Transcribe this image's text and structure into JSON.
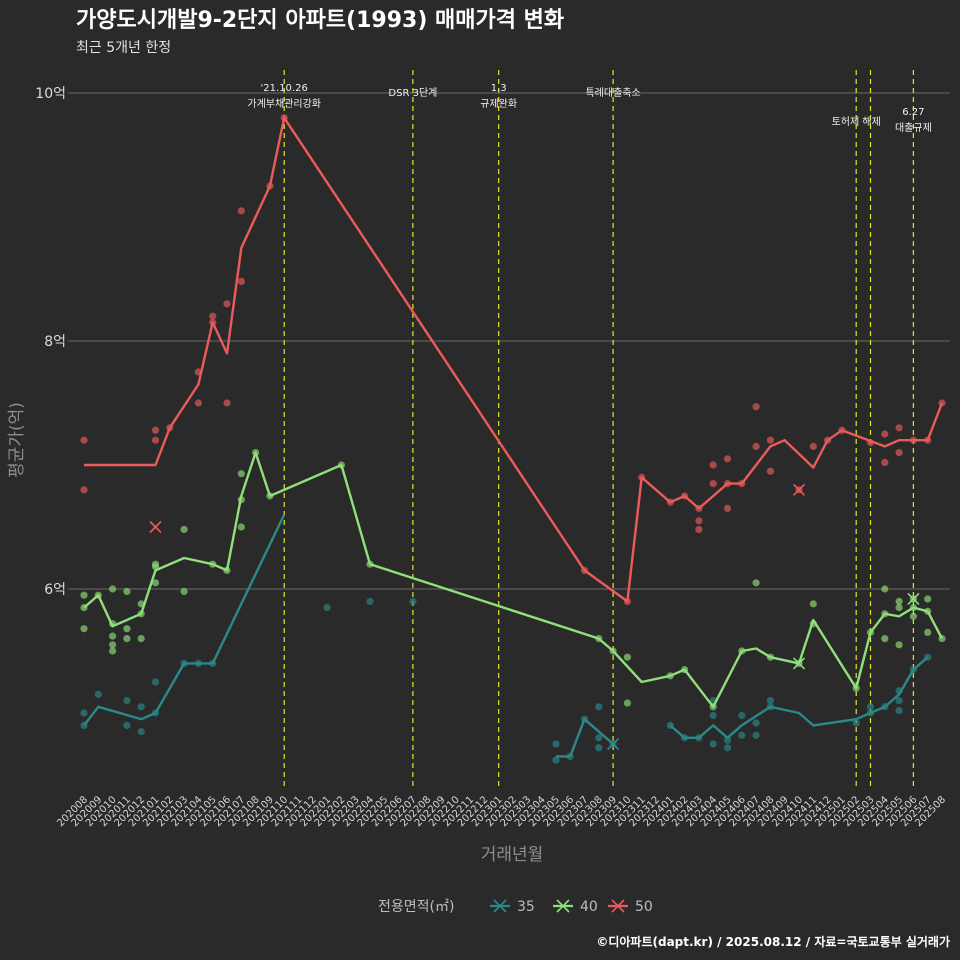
{
  "chart_data": {
    "type": "line",
    "title": "가양도시개발9-2단지 아파트(1993) 매매가격 변화",
    "subtitle": "최근 5개년 한정",
    "xlabel": "거래년월",
    "ylabel": "평균가(억)",
    "caption": "©디아파트(dapt.kr) / 2025.08.12 / 자료=국토교통부 실거래가",
    "legend_title": "전용면적(㎡)",
    "ylim": [
      4.4,
      10.2
    ],
    "yticks": [
      6,
      8,
      10
    ],
    "ytick_labels": [
      "6억",
      "8억",
      "10억"
    ],
    "grid": true,
    "legend_position": "bottom",
    "months": [
      "202008",
      "202009",
      "202010",
      "202011",
      "202012",
      "202101",
      "202102",
      "202103",
      "202104",
      "202105",
      "202106",
      "202107",
      "202108",
      "202109",
      "202110",
      "202111",
      "202112",
      "202201",
      "202202",
      "202203",
      "202204",
      "202205",
      "202206",
      "202207",
      "202208",
      "202209",
      "202210",
      "202211",
      "202212",
      "202301",
      "202302",
      "202303",
      "202304",
      "202305",
      "202306",
      "202307",
      "202308",
      "202309",
      "202310",
      "202311",
      "202312",
      "202401",
      "202402",
      "202403",
      "202404",
      "202405",
      "202406",
      "202407",
      "202408",
      "202409",
      "202410",
      "202411",
      "202412",
      "202501",
      "202502",
      "202503",
      "202504",
      "202505",
      "202506",
      "202507",
      "202508"
    ],
    "events": [
      {
        "month": "202110",
        "lines": [
          "'21.10.26",
          "가계부채관리강화"
        ],
        "level": 0
      },
      {
        "month": "202207",
        "lines": [
          "DSR 3단계"
        ],
        "level": 2
      },
      {
        "month": "202301",
        "lines": [
          "1.3",
          "규제완화"
        ],
        "level": 0
      },
      {
        "month": "202309",
        "lines": [
          "특례대출축소"
        ],
        "level": 2
      },
      {
        "month": "202502",
        "lines": [
          "토허제 해제"
        ],
        "level": 1
      },
      {
        "month": "202503",
        "lines": [
          ""
        ],
        "level": 1
      },
      {
        "month": "202506",
        "lines": [
          "6.27",
          "대출규제"
        ],
        "level": 3
      }
    ],
    "series": [
      {
        "name": "35",
        "color": "#2a8a8a",
        "line": [
          [
            "202008",
            4.9
          ],
          [
            "202009",
            5.05
          ],
          [
            "202012",
            4.95
          ],
          [
            "202101",
            5.0
          ],
          [
            "202103",
            5.4
          ],
          [
            "202105",
            5.4
          ],
          [
            "202110",
            6.6
          ],
          null,
          [
            "202305",
            4.65
          ],
          [
            "202306",
            4.65
          ],
          [
            "202307",
            4.95
          ],
          [
            "202309",
            4.75
          ],
          null,
          [
            "202401",
            4.9
          ],
          [
            "202402",
            4.8
          ],
          [
            "202403",
            4.8
          ],
          [
            "202404",
            4.9
          ],
          [
            "202405",
            4.8
          ],
          [
            "202406",
            4.9
          ],
          [
            "202408",
            5.05
          ],
          [
            "202410",
            5.0
          ],
          [
            "202411",
            4.9
          ],
          [
            "202502",
            4.95
          ],
          [
            "202503",
            5.0
          ],
          [
            "202504",
            5.05
          ],
          [
            "202505",
            5.15
          ],
          [
            "202506",
            5.35
          ],
          [
            "202507",
            5.45
          ]
        ],
        "points": [
          [
            "202008",
            4.9
          ],
          [
            "202008",
            5.0
          ],
          [
            "202009",
            5.15
          ],
          [
            "202011",
            4.9
          ],
          [
            "202011",
            5.1
          ],
          [
            "202012",
            4.85
          ],
          [
            "202012",
            5.05
          ],
          [
            "202101",
            5.0
          ],
          [
            "202101",
            5.25
          ],
          [
            "202103",
            5.4
          ],
          [
            "202104",
            5.4
          ],
          [
            "202105",
            5.4
          ],
          [
            "202201",
            5.85
          ],
          [
            "202204",
            5.9
          ],
          [
            "202207",
            5.9
          ],
          [
            "202305",
            4.75
          ],
          [
            "202305",
            4.62
          ],
          [
            "202306",
            4.65
          ],
          [
            "202307",
            4.95
          ],
          [
            "202308",
            4.8
          ],
          [
            "202308",
            4.72
          ],
          [
            "202308",
            5.05
          ],
          [
            "202309",
            4.75
          ],
          [
            "202401",
            4.9
          ],
          [
            "202402",
            4.8
          ],
          [
            "202403",
            4.8
          ],
          [
            "202404",
            4.75
          ],
          [
            "202404",
            4.98
          ],
          [
            "202404",
            5.1
          ],
          [
            "202405",
            4.78
          ],
          [
            "202405",
            4.72
          ],
          [
            "202406",
            4.82
          ],
          [
            "202406",
            4.98
          ],
          [
            "202407",
            4.82
          ],
          [
            "202407",
            4.92
          ],
          [
            "202408",
            5.1
          ],
          [
            "202408",
            5.05
          ],
          [
            "202502",
            4.92
          ],
          [
            "202503",
            5.0
          ],
          [
            "202503",
            5.05
          ],
          [
            "202504",
            5.05
          ],
          [
            "202505",
            5.02
          ],
          [
            "202505",
            5.1
          ],
          [
            "202505",
            5.18
          ],
          [
            "202506",
            5.35
          ],
          [
            "202507",
            5.45
          ]
        ]
      },
      {
        "name": "40",
        "color": "#8fe07a",
        "line": [
          [
            "202008",
            5.85
          ],
          [
            "202009",
            5.95
          ],
          [
            "202010",
            5.7
          ],
          [
            "202012",
            5.8
          ],
          [
            "202101",
            6.15
          ],
          [
            "202103",
            6.25
          ],
          [
            "202105",
            6.2
          ],
          [
            "202106",
            6.15
          ],
          [
            "202107",
            6.75
          ],
          [
            "202108",
            7.1
          ],
          [
            "202109",
            6.75
          ],
          [
            "202202",
            7.0
          ],
          [
            "202204",
            6.2
          ],
          [
            "202308",
            5.6
          ],
          [
            "202309",
            5.5
          ],
          [
            "202311",
            5.25
          ],
          [
            "202401",
            5.3
          ],
          [
            "202402",
            5.35
          ],
          [
            "202404",
            5.05
          ],
          [
            "202406",
            5.5
          ],
          [
            "202407",
            5.52
          ],
          [
            "202408",
            5.45
          ],
          [
            "202410",
            5.4
          ],
          [
            "202411",
            5.75
          ],
          [
            "202502",
            5.2
          ],
          [
            "202503",
            5.65
          ],
          [
            "202504",
            5.8
          ],
          [
            "202505",
            5.78
          ],
          [
            "202506",
            5.85
          ],
          [
            "202507",
            5.82
          ],
          [
            "202508",
            5.6
          ]
        ],
        "points": [
          [
            "202008",
            5.95
          ],
          [
            "202008",
            5.85
          ],
          [
            "202008",
            5.68
          ],
          [
            "202009",
            5.95
          ],
          [
            "202010",
            5.72
          ],
          [
            "202010",
            5.62
          ],
          [
            "202010",
            6.0
          ],
          [
            "202010",
            5.55
          ],
          [
            "202010",
            5.5
          ],
          [
            "202011",
            5.68
          ],
          [
            "202011",
            5.6
          ],
          [
            "202011",
            5.98
          ],
          [
            "202012",
            5.8
          ],
          [
            "202012",
            5.88
          ],
          [
            "202012",
            5.6
          ],
          [
            "202101",
            6.2
          ],
          [
            "202101",
            6.18
          ],
          [
            "202101",
            6.05
          ],
          [
            "202103",
            5.98
          ],
          [
            "202103",
            6.48
          ],
          [
            "202105",
            6.2
          ],
          [
            "202106",
            6.15
          ],
          [
            "202107",
            6.5
          ],
          [
            "202107",
            6.72
          ],
          [
            "202107",
            6.93
          ],
          [
            "202108",
            7.1
          ],
          [
            "202109",
            6.75
          ],
          [
            "202202",
            7.0
          ],
          [
            "202204",
            6.2
          ],
          [
            "202308",
            5.6
          ],
          [
            "202309",
            5.5
          ],
          [
            "202310",
            5.45
          ],
          [
            "202310",
            5.08
          ],
          [
            "202401",
            5.3
          ],
          [
            "202402",
            5.35
          ],
          [
            "202404",
            5.05
          ],
          [
            "202406",
            5.5
          ],
          [
            "202407",
            6.05
          ],
          [
            "202408",
            5.45
          ],
          [
            "202410",
            5.4
          ],
          [
            "202411",
            5.88
          ],
          [
            "202411",
            5.72
          ],
          [
            "202502",
            5.2
          ],
          [
            "202503",
            5.65
          ],
          [
            "202504",
            5.8
          ],
          [
            "202504",
            6.0
          ],
          [
            "202504",
            5.6
          ],
          [
            "202505",
            5.85
          ],
          [
            "202505",
            5.55
          ],
          [
            "202505",
            5.9
          ],
          [
            "202506",
            5.85
          ],
          [
            "202506",
            5.92
          ],
          [
            "202506",
            5.78
          ],
          [
            "202507",
            5.82
          ],
          [
            "202507",
            5.92
          ],
          [
            "202507",
            5.65
          ],
          [
            "202508",
            5.6
          ]
        ]
      },
      {
        "name": "50",
        "color": "#ec5b5b",
        "line": [
          [
            "202008",
            7.0
          ],
          [
            "202101",
            7.0
          ],
          [
            "202102",
            7.3
          ],
          [
            "202104",
            7.65
          ],
          [
            "202105",
            8.15
          ],
          [
            "202106",
            7.9
          ],
          [
            "202107",
            8.75
          ],
          [
            "202109",
            9.25
          ],
          [
            "202110",
            9.8
          ],
          [
            "202307",
            6.15
          ],
          [
            "202310",
            5.9
          ],
          [
            "202311",
            6.9
          ],
          [
            "202401",
            6.7
          ],
          [
            "202402",
            6.75
          ],
          [
            "202403",
            6.65
          ],
          [
            "202405",
            6.85
          ],
          [
            "202406",
            6.85
          ],
          [
            "202408",
            7.15
          ],
          [
            "202409",
            7.2
          ],
          [
            "202411",
            6.98
          ],
          [
            "202412",
            7.2
          ],
          [
            "202501",
            7.28
          ],
          [
            "202504",
            7.15
          ],
          [
            "202505",
            7.2
          ],
          [
            "202506",
            7.2
          ],
          [
            "202507",
            7.2
          ],
          [
            "202508",
            7.5
          ]
        ],
        "points": [
          [
            "202008",
            7.2
          ],
          [
            "202008",
            6.8
          ],
          [
            "202101",
            7.2
          ],
          [
            "202101",
            7.28
          ],
          [
            "202102",
            7.3
          ],
          [
            "202104",
            7.5
          ],
          [
            "202104",
            7.75
          ],
          [
            "202105",
            8.2
          ],
          [
            "202105",
            8.15
          ],
          [
            "202106",
            8.3
          ],
          [
            "202106",
            7.5
          ],
          [
            "202107",
            8.48
          ],
          [
            "202107",
            9.05
          ],
          [
            "202109",
            9.25
          ],
          [
            "202110",
            9.8
          ],
          [
            "202307",
            6.15
          ],
          [
            "202310",
            5.9
          ],
          [
            "202311",
            6.9
          ],
          [
            "202401",
            6.7
          ],
          [
            "202402",
            6.75
          ],
          [
            "202403",
            6.65
          ],
          [
            "202403",
            6.48
          ],
          [
            "202403",
            6.55
          ],
          [
            "202404",
            7.0
          ],
          [
            "202404",
            6.85
          ],
          [
            "202405",
            6.85
          ],
          [
            "202405",
            7.05
          ],
          [
            "202405",
            6.65
          ],
          [
            "202406",
            6.85
          ],
          [
            "202407",
            7.15
          ],
          [
            "202407",
            7.47
          ],
          [
            "202408",
            7.2
          ],
          [
            "202408",
            6.95
          ],
          [
            "202410",
            6.8
          ],
          [
            "202411",
            7.15
          ],
          [
            "202412",
            7.2
          ],
          [
            "202501",
            7.28
          ],
          [
            "202503",
            7.18
          ],
          [
            "202504",
            7.25
          ],
          [
            "202504",
            7.02
          ],
          [
            "202505",
            7.3
          ],
          [
            "202505",
            7.1
          ],
          [
            "202506",
            7.2
          ],
          [
            "202507",
            7.2
          ],
          [
            "202508",
            7.5
          ]
        ],
        "crosses": [
          [
            "202101",
            6.5
          ],
          [
            "202410",
            6.8
          ]
        ]
      }
    ],
    "cross_markers": [
      {
        "series": "35",
        "month": "202309",
        "value": 4.75
      },
      {
        "series": "40",
        "month": "202410",
        "value": 5.4
      },
      {
        "series": "40",
        "month": "202506",
        "value": 5.92
      },
      {
        "series": "50",
        "month": "202101",
        "value": 6.5
      },
      {
        "series": "50",
        "month": "202410",
        "value": 6.8
      }
    ]
  }
}
